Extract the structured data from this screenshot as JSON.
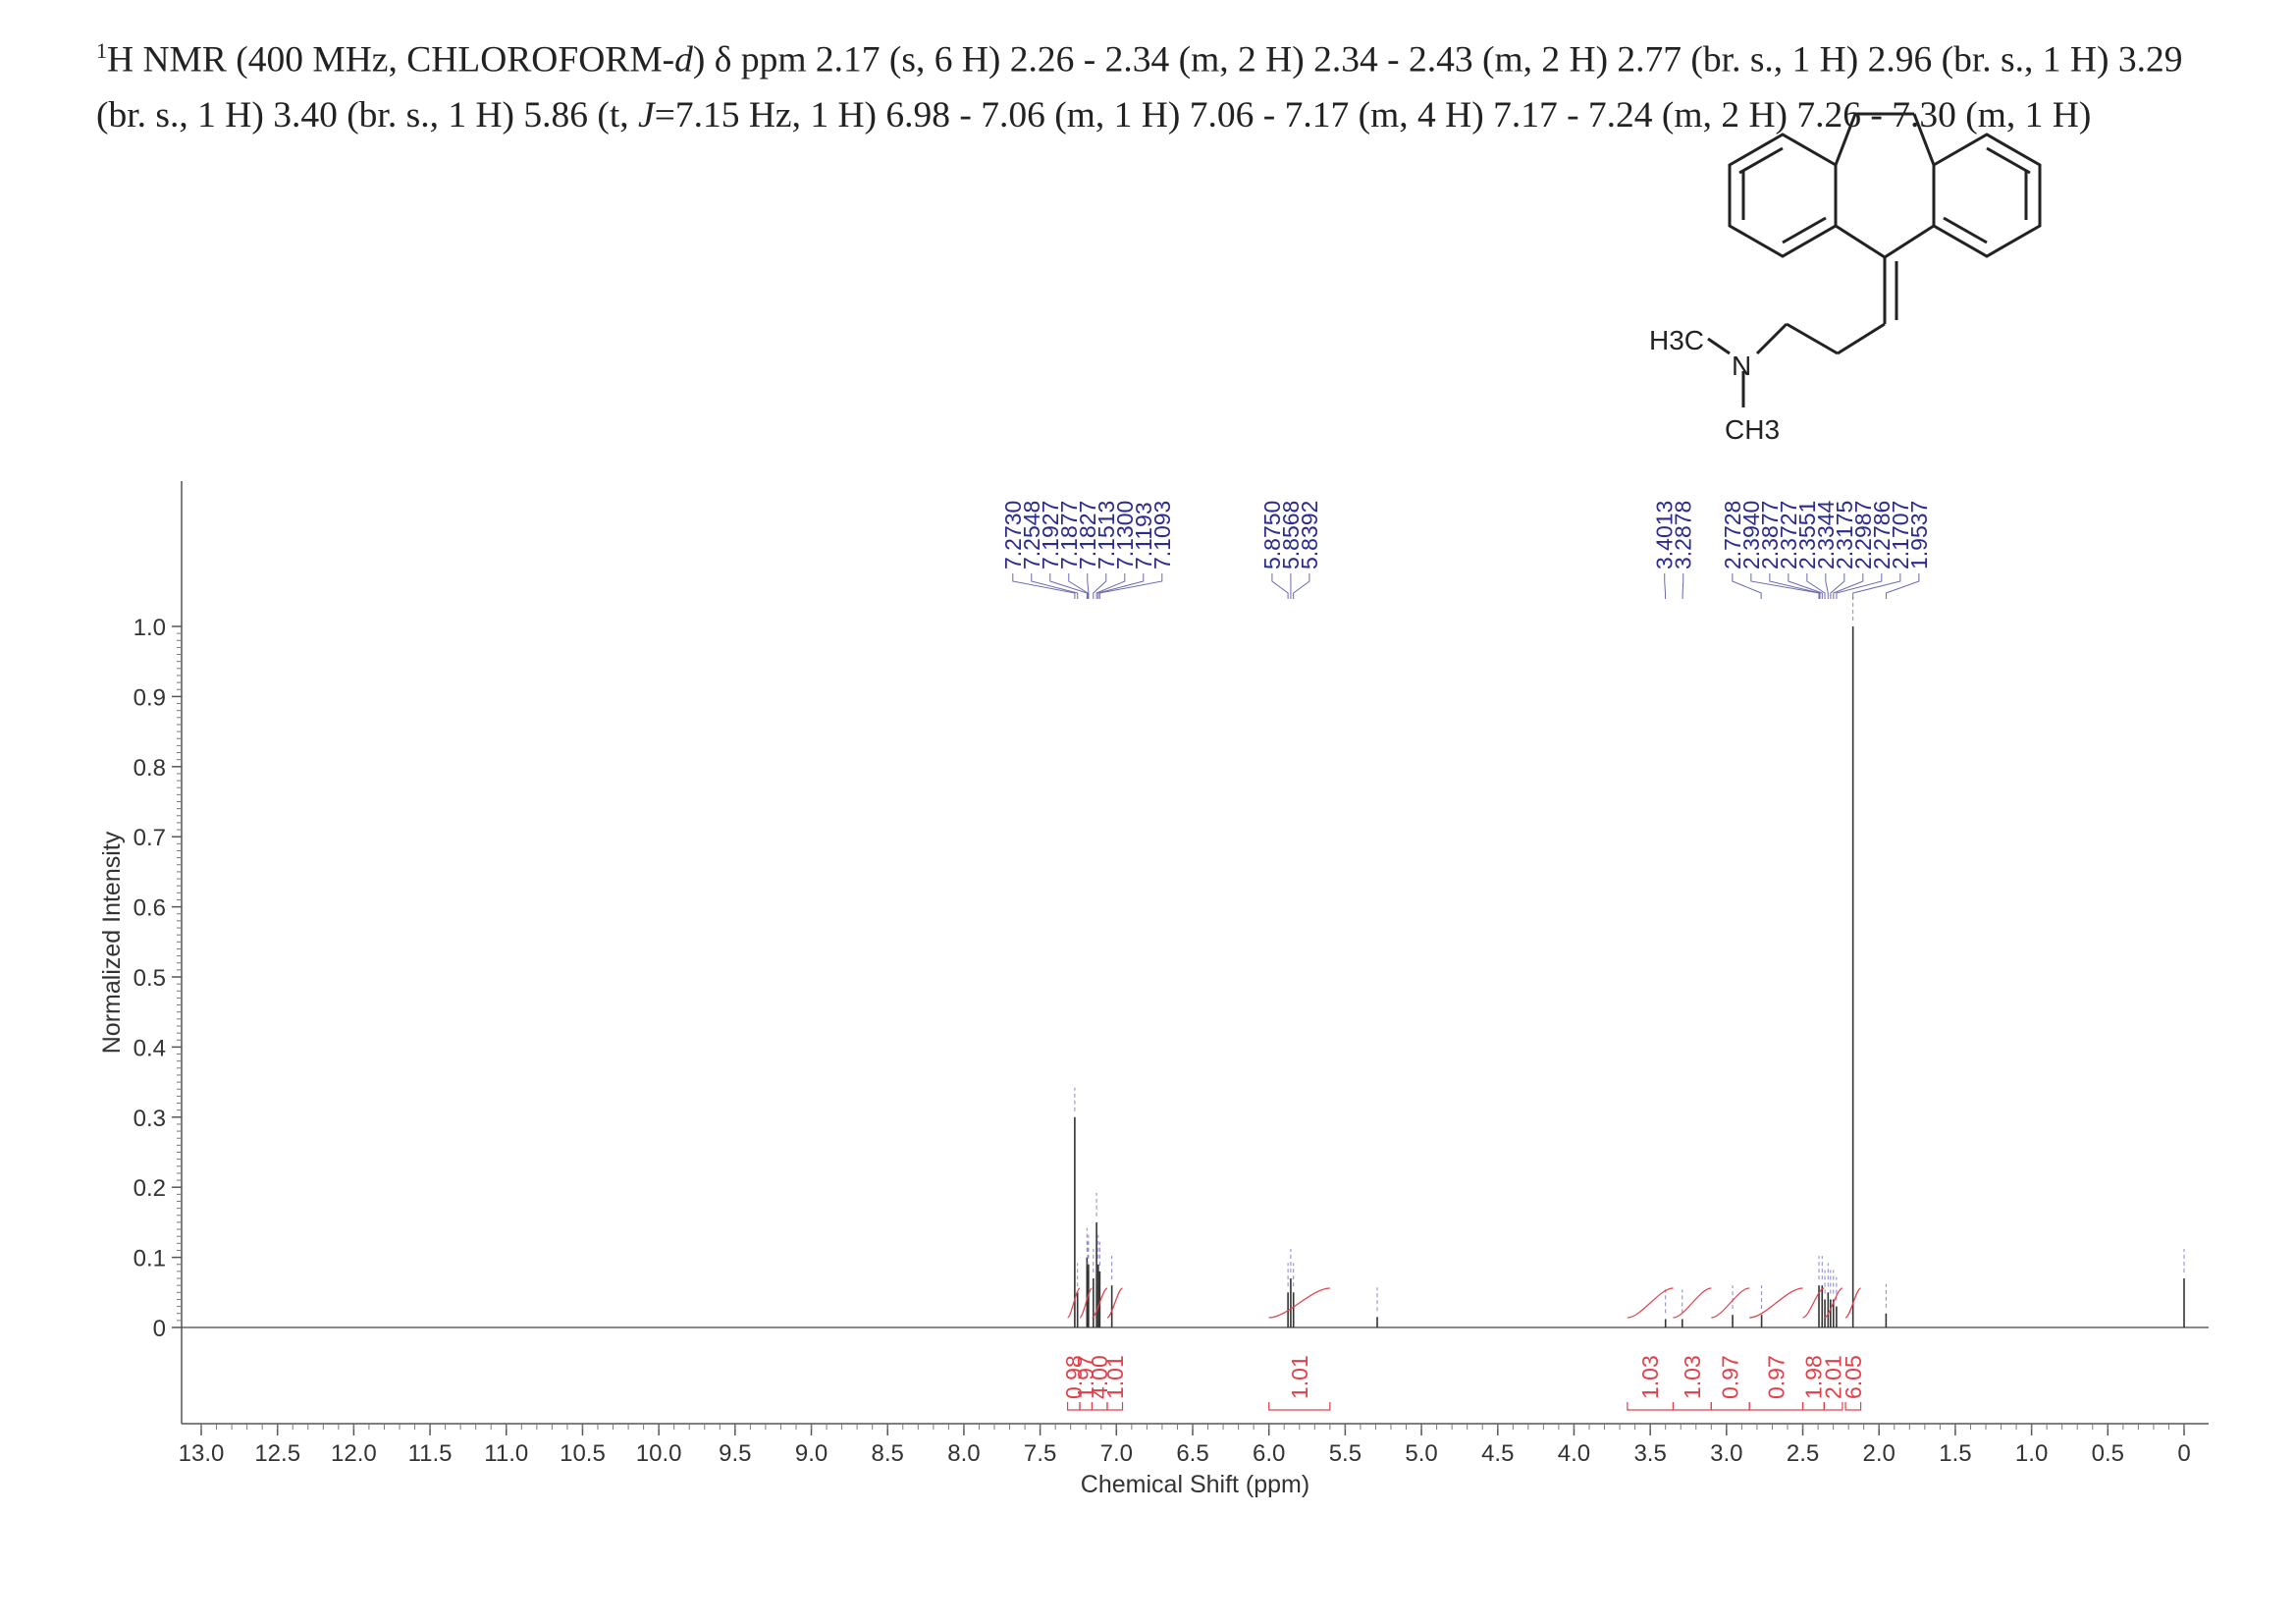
{
  "header": {
    "lead_sup": "1",
    "nucleus": "H NMR (400 MHz, CHLOROFORM-",
    "solvent_d": "d",
    "after_solvent": ") δ ppm 2.17 (s, 6 H) 2.26 - 2.34 (m, 2 H) 2.34 - 2.43 (m, 2 H) 2.77 (br. s., 1 H) 2.96 (br. s., 1 H) 3.29 (br. s., 1 H) 3.40 (br. s., 1 H) 5.86 (t, ",
    "j_symbol": "J",
    "tail": "=7.15 Hz, 1 H) 6.98 - 7.06 (m, 1 H) 7.06 - 7.17 (m, 4 H) 7.17 - 7.24 (m, 2 H) 7.26 - 7.30 (m, 1 H)"
  },
  "molecule": {
    "atom_labels": [
      "H3C",
      "N",
      "CH3"
    ]
  },
  "chart_data": {
    "type": "line",
    "xlabel": "Chemical Shift (ppm)",
    "ylabel": "Normalized Intensity",
    "xlim": [
      13.0,
      0.0
    ],
    "x_reversed": true,
    "ylim": [
      0.0,
      1.0
    ],
    "x_ticks": [
      "13.0",
      "12.5",
      "12.0",
      "11.5",
      "11.0",
      "10.5",
      "10.0",
      "9.5",
      "9.0",
      "8.5",
      "8.0",
      "7.5",
      "7.0",
      "6.5",
      "6.0",
      "5.5",
      "5.0",
      "4.5",
      "4.0",
      "3.5",
      "3.0",
      "2.5",
      "2.0",
      "1.5",
      "1.0",
      "0.5",
      "0"
    ],
    "y_ticks": [
      "0",
      "0.1",
      "0.2",
      "0.3",
      "0.4",
      "0.5",
      "0.6",
      "0.7",
      "0.8",
      "0.9",
      "1.0"
    ],
    "peak_groups": [
      {
        "labels": [
          "7.2730",
          "7.2548",
          "7.1927",
          "7.1877",
          "7.1827",
          "7.1513",
          "7.1300",
          "7.1193",
          "7.1093"
        ]
      },
      {
        "labels": [
          "5.8750",
          "5.8568",
          "5.8392"
        ]
      },
      {
        "labels": [
          "3.4013",
          "3.2878"
        ]
      },
      {
        "labels": [
          "2.7728",
          "2.3940",
          "2.3877",
          "2.3727",
          "2.3551",
          "2.3344",
          "2.3175",
          "2.2987",
          "2.2786",
          "2.1707",
          "1.9537"
        ]
      }
    ],
    "peaks": [
      {
        "ppm": 7.273,
        "height": 0.3
      },
      {
        "ppm": 7.255,
        "height": 0.05
      },
      {
        "ppm": 7.193,
        "height": 0.1
      },
      {
        "ppm": 7.188,
        "height": 0.08
      },
      {
        "ppm": 7.183,
        "height": 0.09
      },
      {
        "ppm": 7.151,
        "height": 0.07
      },
      {
        "ppm": 7.13,
        "height": 0.15
      },
      {
        "ppm": 7.119,
        "height": 0.09
      },
      {
        "ppm": 7.109,
        "height": 0.08
      },
      {
        "ppm": 7.03,
        "height": 0.06
      },
      {
        "ppm": 5.875,
        "height": 0.05
      },
      {
        "ppm": 5.857,
        "height": 0.07
      },
      {
        "ppm": 5.839,
        "height": 0.05
      },
      {
        "ppm": 5.29,
        "height": 0.015
      },
      {
        "ppm": 3.4,
        "height": 0.012
      },
      {
        "ppm": 3.29,
        "height": 0.012
      },
      {
        "ppm": 2.96,
        "height": 0.018
      },
      {
        "ppm": 2.77,
        "height": 0.018
      },
      {
        "ppm": 2.394,
        "height": 0.06
      },
      {
        "ppm": 2.373,
        "height": 0.06
      },
      {
        "ppm": 2.355,
        "height": 0.04
      },
      {
        "ppm": 2.334,
        "height": 0.05
      },
      {
        "ppm": 2.318,
        "height": 0.04
      },
      {
        "ppm": 2.299,
        "height": 0.04
      },
      {
        "ppm": 2.279,
        "height": 0.03
      },
      {
        "ppm": 2.171,
        "height": 1.0
      },
      {
        "ppm": 1.954,
        "height": 0.02
      },
      {
        "ppm": 0.0,
        "height": 0.07
      }
    ],
    "integrations": [
      {
        "from": 7.32,
        "to": 7.24,
        "value": "0.98"
      },
      {
        "from": 7.24,
        "to": 7.16,
        "value": "1.97"
      },
      {
        "from": 7.16,
        "to": 7.06,
        "value": "4.00"
      },
      {
        "from": 7.06,
        "to": 6.96,
        "value": "1.01"
      },
      {
        "from": 6.0,
        "to": 5.6,
        "value": "1.01"
      },
      {
        "from": 3.65,
        "to": 3.35,
        "value": "1.03"
      },
      {
        "from": 3.35,
        "to": 3.1,
        "value": "1.03"
      },
      {
        "from": 3.1,
        "to": 2.85,
        "value": "0.97"
      },
      {
        "from": 2.85,
        "to": 2.5,
        "value": "0.97"
      },
      {
        "from": 2.5,
        "to": 2.36,
        "value": "1.98"
      },
      {
        "from": 2.36,
        "to": 2.24,
        "value": "2.01"
      },
      {
        "from": 2.22,
        "to": 2.12,
        "value": "6.05"
      }
    ]
  }
}
